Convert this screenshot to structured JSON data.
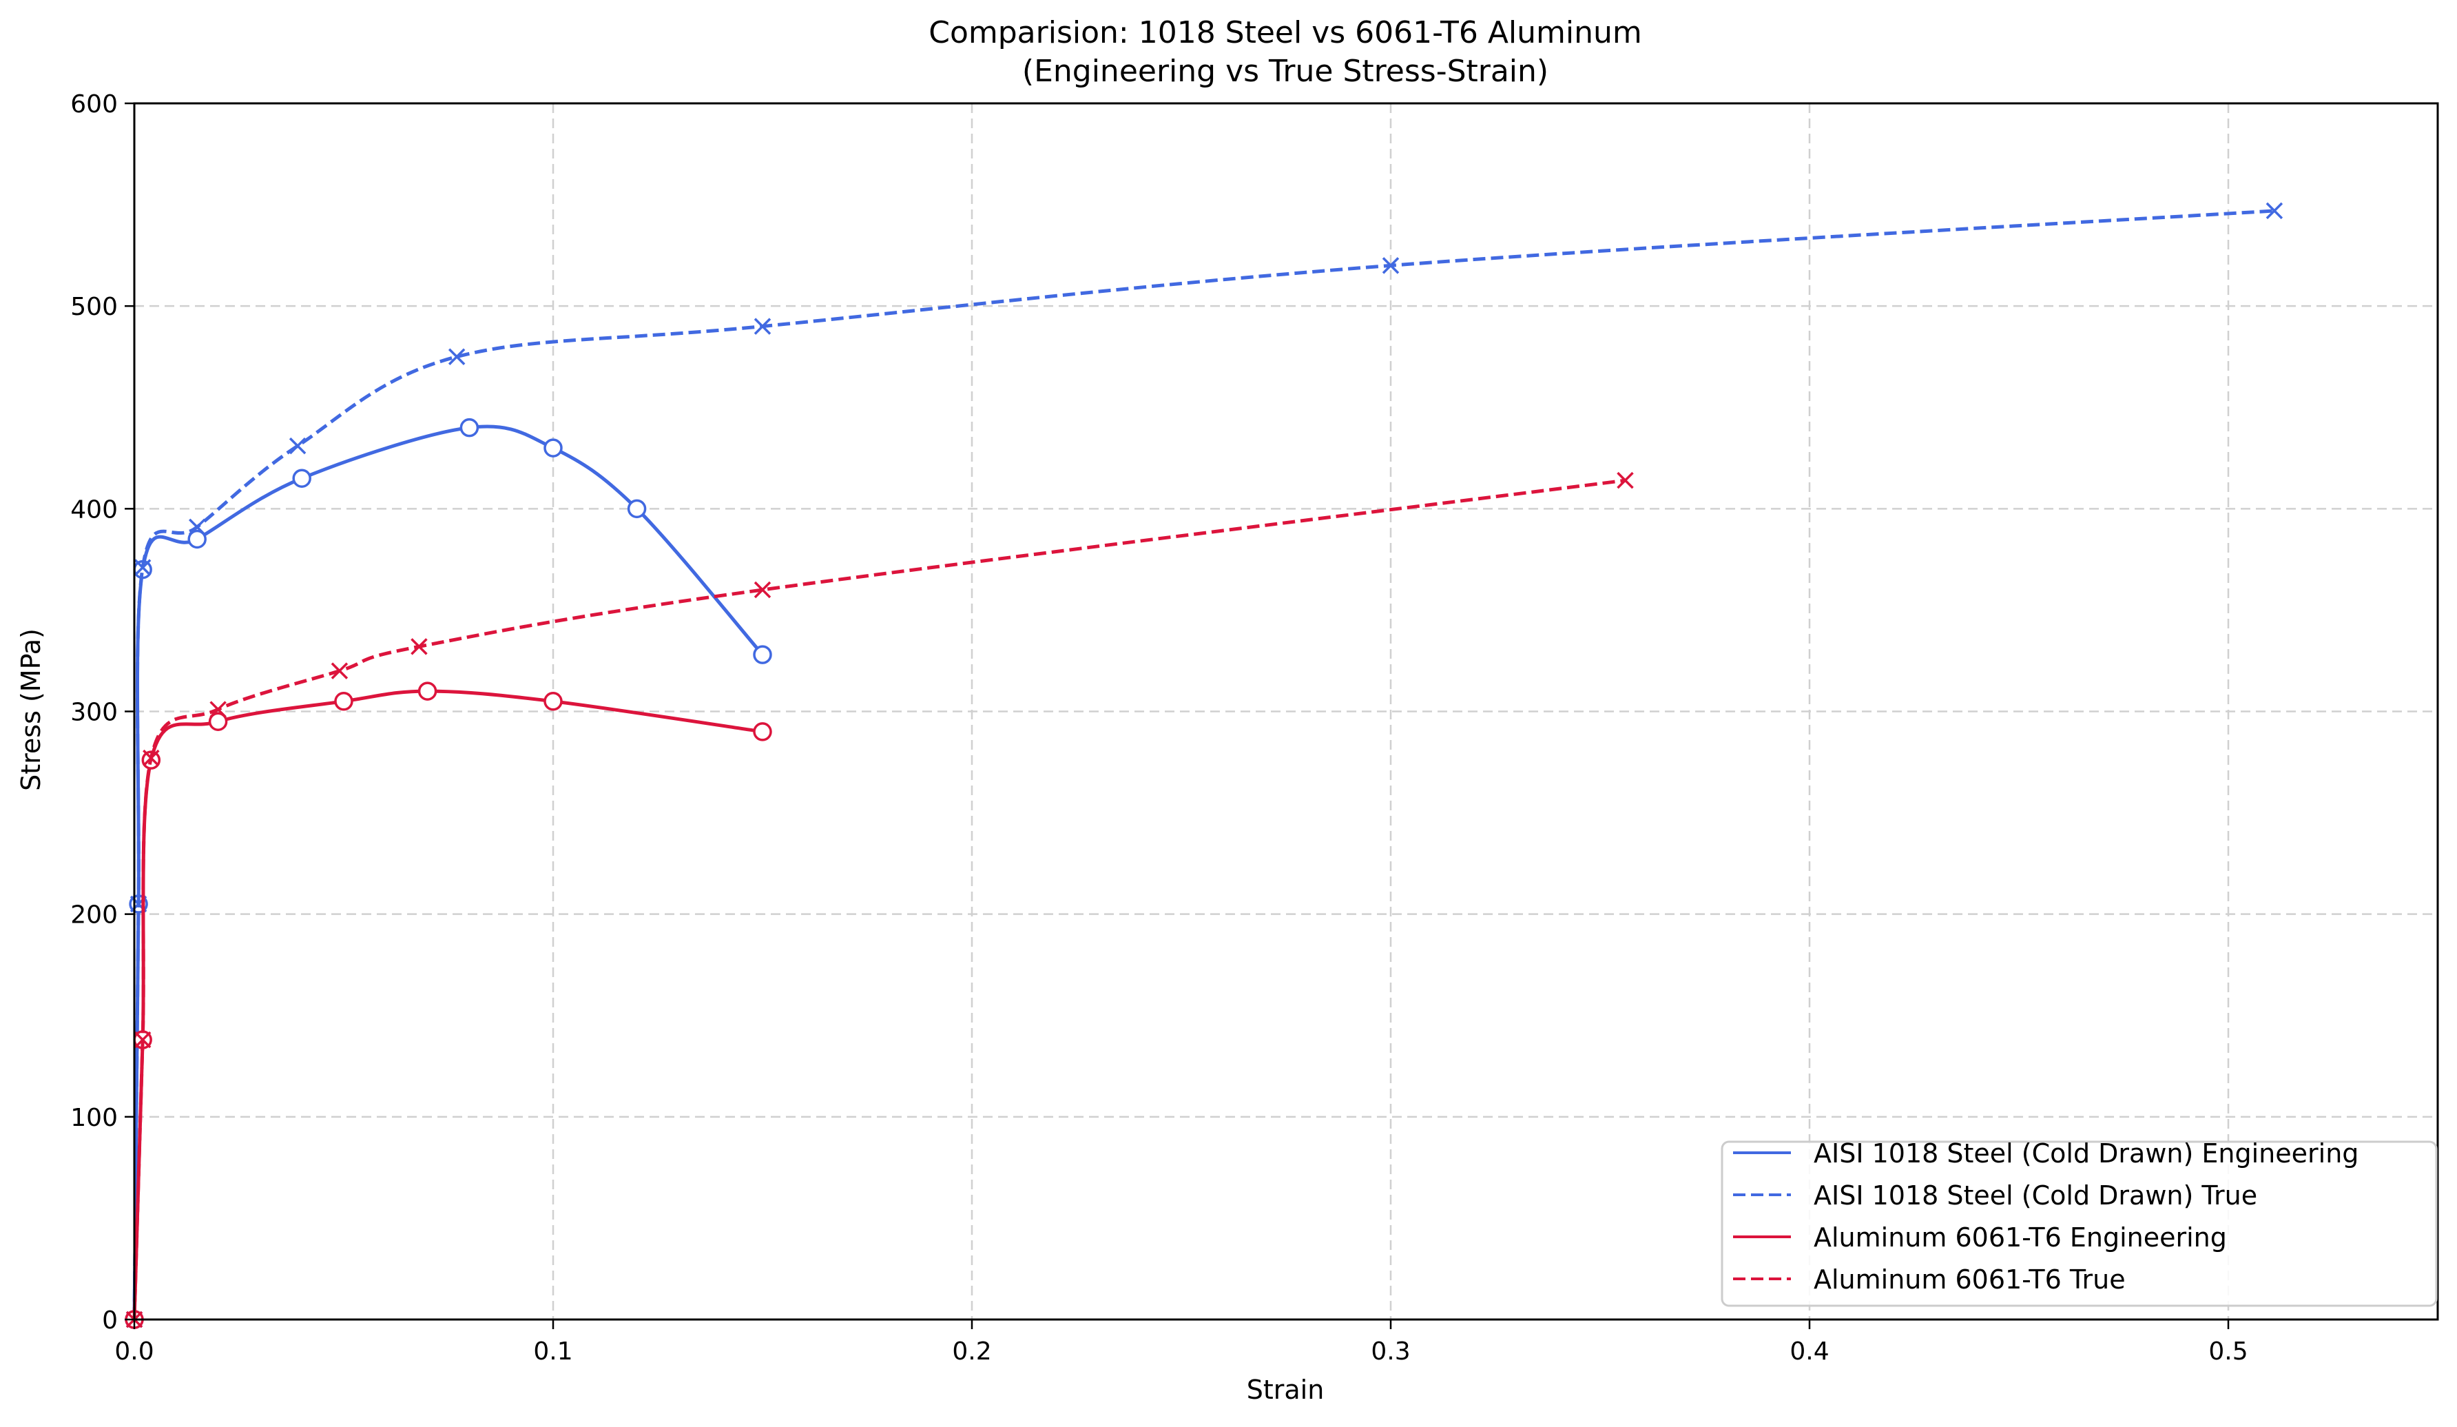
{
  "chart_data": {
    "type": "line",
    "title": "Comparision: 1018 Steel vs 6061-T6 Aluminum",
    "subtitle": "(Engineering vs True Stress-Strain)",
    "xlabel": "Strain",
    "ylabel": "Stress (MPa)",
    "xlim": [
      0,
      0.55
    ],
    "ylim": [
      0,
      600
    ],
    "xticks": [
      0.0,
      0.1,
      0.2,
      0.3,
      0.4,
      0.5
    ],
    "xtick_labels": [
      "0.0",
      "0.1",
      "0.2",
      "0.3",
      "0.4",
      "0.5"
    ],
    "yticks": [
      0,
      100,
      200,
      300,
      400,
      500,
      600
    ],
    "ytick_labels": [
      "0",
      "100",
      "200",
      "300",
      "400",
      "500",
      "600"
    ],
    "grid": true,
    "legend_position": "lower right",
    "series": [
      {
        "name": "AISI 1018 Steel (Cold Drawn) Engineering",
        "color": "#4169E1",
        "linestyle": "solid",
        "marker": "circle",
        "x": [
          0,
          0.001,
          0.002,
          0.015,
          0.04,
          0.08,
          0.1,
          0.12,
          0.15
        ],
        "y": [
          0,
          205,
          370,
          385,
          415,
          440,
          430,
          400,
          328
        ]
      },
      {
        "name": "AISI 1018 Steel (Cold Drawn) True",
        "color": "#4169E1",
        "linestyle": "dashed",
        "marker": "x",
        "x": [
          0,
          0.001,
          0.002,
          0.015,
          0.039,
          0.077,
          0.15,
          0.3,
          0.511
        ],
        "y": [
          0,
          205,
          371,
          391,
          431,
          475,
          490,
          520,
          547
        ]
      },
      {
        "name": "Aluminum 6061-T6 Engineering",
        "color": "#DC143C",
        "linestyle": "solid",
        "marker": "circle",
        "x": [
          0,
          0.002,
          0.004,
          0.02,
          0.05,
          0.07,
          0.1,
          0.15
        ],
        "y": [
          0,
          138,
          276,
          295,
          305,
          310,
          305,
          290
        ]
      },
      {
        "name": "Aluminum 6061-T6 True",
        "color": "#DC143C",
        "linestyle": "dashed",
        "marker": "x",
        "x": [
          0,
          0.002,
          0.004,
          0.02,
          0.049,
          0.068,
          0.15,
          0.356
        ],
        "y": [
          0,
          138,
          277,
          301,
          320,
          332,
          360,
          414
        ]
      }
    ]
  }
}
